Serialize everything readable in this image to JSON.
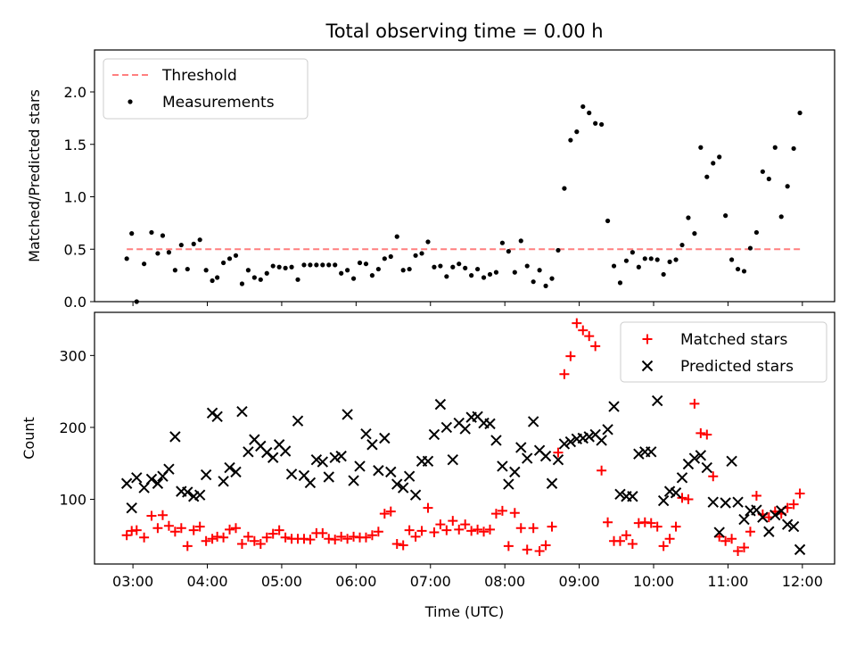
{
  "figure": {
    "title": "Total observing time = 0.00 h"
  },
  "chart_data": [
    {
      "type": "scatter",
      "title": "Total observing time = 0.00 h",
      "xlabel": "",
      "ylabel": "Matched/Predicted stars",
      "xlim": [
        "02:29",
        "12:26"
      ],
      "ylim": [
        0.0,
        2.4
      ],
      "yticks": [
        0.0,
        0.5,
        1.0,
        1.5,
        2.0
      ],
      "ytick_labels": [
        "0.0",
        "0.5",
        "1.0",
        "1.5",
        "2.0"
      ],
      "grid": false,
      "legend": {
        "position": "top-left",
        "entries": [
          "Threshold",
          "Measurements"
        ]
      },
      "threshold": {
        "name": "Threshold",
        "value": 0.5,
        "x_start": "02:55",
        "x_end": "12:00",
        "color": "#ff7f7f",
        "style": "dashed"
      },
      "series": [
        {
          "name": "Measurements",
          "color": "#000000",
          "marker": "dot",
          "x": [
            "02:55",
            "02:59",
            "03:03",
            "03:09",
            "03:15",
            "03:20",
            "03:24",
            "03:29",
            "03:34",
            "03:39",
            "03:44",
            "03:49",
            "03:54",
            "03:59",
            "04:04",
            "04:08",
            "04:13",
            "04:18",
            "04:23",
            "04:28",
            "04:33",
            "04:38",
            "04:43",
            "04:48",
            "04:53",
            "04:58",
            "05:03",
            "05:08",
            "05:13",
            "05:18",
            "05:23",
            "05:28",
            "05:33",
            "05:38",
            "05:43",
            "05:48",
            "05:53",
            "05:58",
            "06:03",
            "06:08",
            "06:13",
            "06:18",
            "06:23",
            "06:28",
            "06:33",
            "06:38",
            "06:43",
            "06:48",
            "06:53",
            "06:58",
            "07:03",
            "07:08",
            "07:13",
            "07:18",
            "07:23",
            "07:28",
            "07:33",
            "07:38",
            "07:43",
            "07:48",
            "07:53",
            "07:58",
            "08:03",
            "08:08",
            "08:13",
            "08:18",
            "08:23",
            "08:28",
            "08:33",
            "08:38",
            "08:43",
            "08:48",
            "08:53",
            "08:58",
            "09:03",
            "09:08",
            "09:13",
            "09:18",
            "09:23",
            "09:28",
            "09:33",
            "09:38",
            "09:43",
            "09:48",
            "09:53",
            "09:58",
            "10:03",
            "10:08",
            "10:13",
            "10:18",
            "10:23",
            "10:28",
            "10:33",
            "10:38",
            "10:43",
            "10:48",
            "10:53",
            "10:58",
            "11:03",
            "11:08",
            "11:13",
            "11:18",
            "11:23",
            "11:28",
            "11:33",
            "11:38",
            "11:43",
            "11:48",
            "11:53",
            "11:58"
          ],
          "y": [
            0.41,
            0.65,
            0.0,
            0.36,
            0.66,
            0.46,
            0.63,
            0.47,
            0.3,
            0.54,
            0.31,
            0.55,
            0.59,
            0.3,
            0.2,
            0.23,
            0.37,
            0.41,
            0.44,
            0.17,
            0.3,
            0.23,
            0.21,
            0.27,
            0.34,
            0.33,
            0.32,
            0.33,
            0.21,
            0.35,
            0.35,
            0.35,
            0.35,
            0.35,
            0.35,
            0.27,
            0.3,
            0.22,
            0.37,
            0.36,
            0.25,
            0.31,
            0.41,
            0.43,
            0.62,
            0.3,
            0.31,
            0.44,
            0.46,
            0.57,
            0.33,
            0.34,
            0.24,
            0.33,
            0.36,
            0.32,
            0.25,
            0.31,
            0.23,
            0.26,
            0.28,
            0.56,
            0.48,
            0.28,
            0.58,
            0.34,
            0.19,
            0.3,
            0.15,
            0.22,
            0.49,
            1.08,
            1.54,
            1.62,
            1.86,
            1.8,
            1.7,
            1.69,
            0.77,
            0.34,
            0.18,
            0.39,
            0.47,
            0.33,
            0.41,
            0.41,
            0.4,
            0.26,
            0.38,
            0.4,
            0.54,
            0.8,
            0.65,
            1.47,
            1.19,
            1.32,
            1.38,
            0.82,
            0.4,
            0.31,
            0.29,
            0.51,
            0.66,
            1.24,
            1.17,
            1.47,
            0.81,
            1.1,
            1.46,
            1.8
          ]
        }
      ]
    },
    {
      "type": "scatter",
      "title": "",
      "xlabel": "Time (UTC)",
      "ylabel": "Count",
      "xlim": [
        "02:29",
        "12:26"
      ],
      "xticks": [
        "03:00",
        "04:00",
        "05:00",
        "06:00",
        "07:00",
        "08:00",
        "09:00",
        "10:00",
        "11:00",
        "12:00"
      ],
      "ylim": [
        10,
        360
      ],
      "yticks": [
        100,
        200,
        300
      ],
      "ytick_labels": [
        "100",
        "200",
        "300"
      ],
      "grid": false,
      "legend": {
        "position": "top-right",
        "entries": [
          "Matched stars",
          "Predicted stars"
        ]
      },
      "series": [
        {
          "name": "Matched stars",
          "color": "#ff0000",
          "marker": "plus",
          "x": [
            "02:55",
            "02:59",
            "03:03",
            "03:09",
            "03:15",
            "03:20",
            "03:24",
            "03:29",
            "03:34",
            "03:39",
            "03:44",
            "03:49",
            "03:54",
            "03:59",
            "04:04",
            "04:08",
            "04:13",
            "04:18",
            "04:23",
            "04:28",
            "04:33",
            "04:38",
            "04:43",
            "04:48",
            "04:53",
            "04:58",
            "05:03",
            "05:08",
            "05:13",
            "05:18",
            "05:23",
            "05:28",
            "05:33",
            "05:38",
            "05:43",
            "05:48",
            "05:53",
            "05:58",
            "06:03",
            "06:08",
            "06:13",
            "06:18",
            "06:23",
            "06:28",
            "06:33",
            "06:38",
            "06:43",
            "06:48",
            "06:53",
            "06:58",
            "07:03",
            "07:08",
            "07:13",
            "07:18",
            "07:23",
            "07:28",
            "07:33",
            "07:38",
            "07:43",
            "07:48",
            "07:53",
            "07:58",
            "08:03",
            "08:08",
            "08:13",
            "08:18",
            "08:23",
            "08:28",
            "08:33",
            "08:38",
            "08:43",
            "08:48",
            "08:53",
            "08:58",
            "09:03",
            "09:08",
            "09:13",
            "09:18",
            "09:23",
            "09:28",
            "09:33",
            "09:38",
            "09:43",
            "09:48",
            "09:53",
            "09:58",
            "10:03",
            "10:08",
            "10:13",
            "10:18",
            "10:23",
            "10:28",
            "10:33",
            "10:38",
            "10:43",
            "10:48",
            "10:53",
            "10:58",
            "11:03",
            "11:08",
            "11:13",
            "11:18",
            "11:23",
            "11:28",
            "11:33",
            "11:38",
            "11:43",
            "11:48",
            "11:53",
            "11:58"
          ],
          "y": [
            50,
            56,
            57,
            47,
            77,
            60,
            78,
            63,
            55,
            60,
            35,
            57,
            62,
            42,
            45,
            48,
            47,
            58,
            60,
            38,
            48,
            42,
            38,
            47,
            52,
            57,
            47,
            45,
            45,
            45,
            44,
            53,
            53,
            45,
            44,
            48,
            45,
            48,
            47,
            47,
            50,
            55,
            80,
            83,
            38,
            36,
            57,
            48,
            56,
            88,
            54,
            65,
            57,
            70,
            58,
            65,
            56,
            58,
            55,
            58,
            80,
            84,
            35,
            81,
            60,
            30,
            60,
            28,
            36,
            62,
            165,
            274,
            299,
            345,
            335,
            327,
            313,
            140,
            68,
            42,
            42,
            50,
            38,
            67,
            68,
            67,
            62,
            35,
            45,
            62,
            102,
            100,
            233,
            192,
            190,
            132,
            48,
            42,
            45,
            28,
            33,
            55,
            105,
            79,
            75,
            83,
            80,
            88,
            93,
            108
          ]
        },
        {
          "name": "Predicted stars",
          "color": "#000000",
          "marker": "x",
          "x": [
            "02:55",
            "02:59",
            "03:03",
            "03:09",
            "03:15",
            "03:20",
            "03:24",
            "03:29",
            "03:34",
            "03:39",
            "03:44",
            "03:49",
            "03:54",
            "03:59",
            "04:04",
            "04:08",
            "04:13",
            "04:18",
            "04:23",
            "04:28",
            "04:33",
            "04:38",
            "04:43",
            "04:48",
            "04:53",
            "04:58",
            "05:03",
            "05:08",
            "05:13",
            "05:18",
            "05:23",
            "05:28",
            "05:33",
            "05:38",
            "05:43",
            "05:48",
            "05:53",
            "05:58",
            "06:03",
            "06:08",
            "06:13",
            "06:18",
            "06:23",
            "06:28",
            "06:33",
            "06:38",
            "06:43",
            "06:48",
            "06:53",
            "06:58",
            "07:03",
            "07:08",
            "07:13",
            "07:18",
            "07:23",
            "07:28",
            "07:33",
            "07:38",
            "07:43",
            "07:48",
            "07:53",
            "07:58",
            "08:03",
            "08:08",
            "08:13",
            "08:18",
            "08:23",
            "08:28",
            "08:33",
            "08:38",
            "08:43",
            "08:48",
            "08:53",
            "08:58",
            "09:03",
            "09:08",
            "09:13",
            "09:18",
            "09:23",
            "09:28",
            "09:33",
            "09:38",
            "09:43",
            "09:48",
            "09:53",
            "09:58",
            "10:03",
            "10:08",
            "10:13",
            "10:18",
            "10:23",
            "10:28",
            "10:33",
            "10:38",
            "10:43",
            "10:48",
            "10:53",
            "10:58",
            "11:03",
            "11:08",
            "11:13",
            "11:18",
            "11:23",
            "11:28",
            "11:33",
            "11:38",
            "11:43",
            "11:48",
            "11:53",
            "11:58"
          ],
          "y": [
            122,
            88,
            130,
            116,
            128,
            122,
            132,
            142,
            187,
            111,
            110,
            104,
            106,
            134,
            220,
            215,
            125,
            144,
            138,
            222,
            166,
            183,
            174,
            165,
            158,
            176,
            167,
            135,
            209,
            133,
            123,
            155,
            152,
            131,
            158,
            160,
            218,
            126,
            146,
            191,
            176,
            140,
            185,
            138,
            121,
            116,
            132,
            106,
            153,
            153,
            190,
            232,
            200,
            155,
            206,
            198,
            214,
            215,
            206,
            205,
            182,
            146,
            121,
            138,
            172,
            157,
            208,
            168,
            160,
            122,
            155,
            177,
            180,
            184,
            185,
            187,
            190,
            182,
            197,
            229,
            107,
            104,
            104,
            163,
            166,
            166,
            237,
            98,
            111,
            109,
            130,
            149,
            157,
            161,
            144,
            96,
            54,
            95,
            153,
            96,
            72,
            84,
            85,
            75,
            55,
            78,
            84,
            65,
            62,
            30
          ]
        }
      ]
    }
  ]
}
